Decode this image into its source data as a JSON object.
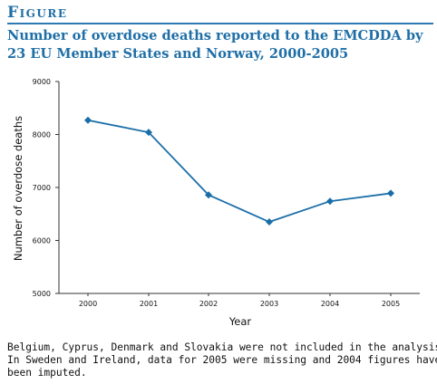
{
  "header": {
    "label": "Figure",
    "title_lines": [
      "Number of overdose deaths reported to the EMCDDA by",
      "23 EU Member States and Norway, 2000-2005"
    ]
  },
  "caption_lines": [
    "Belgium, Cyprus, Denmark and Slovakia were not included in the analysis",
    "In Sweden and Ireland, data for 2005 were missing and 2004 figures have",
    "been imputed."
  ],
  "colors": {
    "accent": "#1f6fa6",
    "line": "#1a6ea8",
    "axis": "#333333"
  },
  "chart_data": {
    "type": "line",
    "title": "Number of overdose deaths reported to the EMCDDA by 23 EU Member States and Norway, 2000-2005",
    "xlabel": "Year",
    "ylabel": "Number of overdose deaths",
    "categories": [
      "2000",
      "2001",
      "2002",
      "2003",
      "2004",
      "2005"
    ],
    "series": [
      {
        "values": [
          8270,
          8040,
          6860,
          6350,
          6740,
          6890
        ]
      }
    ],
    "ylim": [
      5000,
      9000
    ],
    "yticks": [
      5000,
      6000,
      7000,
      8000,
      9000
    ],
    "grid": false,
    "marker": "diamond"
  }
}
